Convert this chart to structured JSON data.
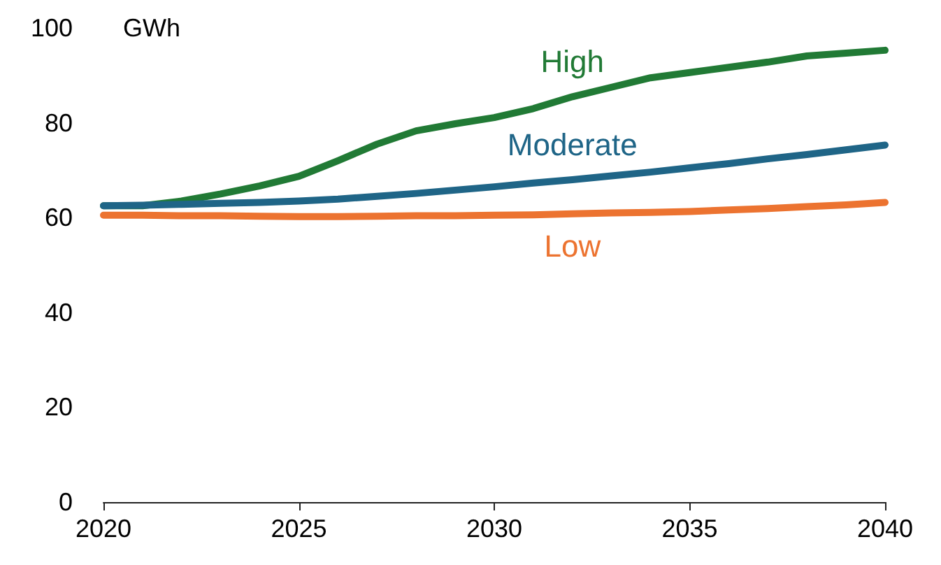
{
  "chart_data": {
    "type": "line",
    "ylabel": "GWh",
    "x": [
      2020,
      2021,
      2022,
      2023,
      2024,
      2025,
      2026,
      2027,
      2028,
      2029,
      2030,
      2031,
      2032,
      2033,
      2034,
      2035,
      2036,
      2037,
      2038,
      2039,
      2040
    ],
    "series": [
      {
        "name": "High",
        "color": "#217a35",
        "values": [
          62.5,
          62.5,
          63.5,
          65,
          66.7,
          68.7,
          72,
          75.5,
          78.3,
          79.8,
          81.1,
          83,
          85.5,
          87.5,
          89.5,
          90.6,
          91.7,
          92.8,
          94.1,
          94.7,
          95.3
        ]
      },
      {
        "name": "Moderate",
        "color": "#1f6587",
        "values": [
          62.5,
          62.6,
          62.8,
          63,
          63.2,
          63.5,
          63.9,
          64.5,
          65.1,
          65.8,
          66.5,
          67.3,
          68,
          68.8,
          69.6,
          70.5,
          71.4,
          72.4,
          73.3,
          74.3,
          75.3
        ]
      },
      {
        "name": "Low",
        "color": "#ec7330",
        "values": [
          60.5,
          60.5,
          60.4,
          60.4,
          60.3,
          60.2,
          60.2,
          60.3,
          60.4,
          60.4,
          60.5,
          60.6,
          60.8,
          61,
          61.1,
          61.3,
          61.6,
          61.9,
          62.3,
          62.7,
          63.2
        ]
      }
    ],
    "xlim": [
      2020,
      2040
    ],
    "xticks": [
      2020,
      2025,
      2030,
      2035,
      2040
    ],
    "ylim": [
      0,
      100
    ],
    "yticks": [
      0,
      20,
      40,
      60,
      80,
      100
    ],
    "grid": false,
    "legend": false,
    "marker": "none",
    "line_style": "solid"
  }
}
